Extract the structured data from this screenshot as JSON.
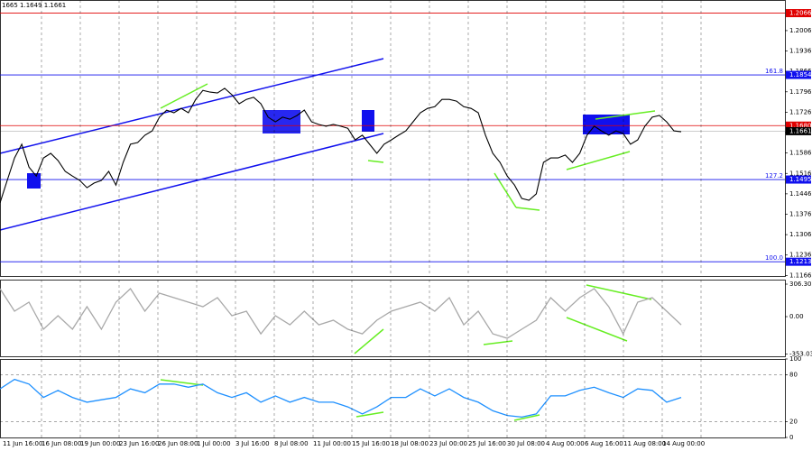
{
  "chart_data": [
    {
      "type": "line",
      "title": "1665 1.1649 1.1661",
      "color": "#000000",
      "ylim": [
        1.1164,
        1.2111
      ],
      "yticks": [
        1.2006,
        1.1936,
        1.1866,
        1.1796,
        1.1726,
        1.1656,
        1.1586,
        1.1516,
        1.1446,
        1.1376,
        1.1306,
        1.1236,
        1.1166
      ],
      "values": [
        1.1415,
        1.1492,
        1.1569,
        1.1616,
        1.1538,
        1.1507,
        1.1569,
        1.1585,
        1.156,
        1.1523,
        1.1507,
        1.1492,
        1.1467,
        1.1483,
        1.1492,
        1.1523,
        1.1476,
        1.1554,
        1.1616,
        1.1622,
        1.1647,
        1.1662,
        1.1709,
        1.1733,
        1.1724,
        1.1739,
        1.1724,
        1.177,
        1.1801,
        1.1795,
        1.1792,
        1.1808,
        1.1786,
        1.1755,
        1.177,
        1.1777,
        1.1755,
        1.1709,
        1.1693,
        1.1709,
        1.1702,
        1.1715,
        1.1733,
        1.1693,
        1.1684,
        1.1678,
        1.1684,
        1.1678,
        1.1671,
        1.1631,
        1.1647,
        1.1616,
        1.1585,
        1.1616,
        1.1631,
        1.1647,
        1.1662,
        1.1693,
        1.1724,
        1.1739,
        1.1745,
        1.177,
        1.177,
        1.1764,
        1.1745,
        1.1739,
        1.1724,
        1.1647,
        1.1585,
        1.1554,
        1.1507,
        1.1476,
        1.143,
        1.1424,
        1.1446,
        1.1554,
        1.1569,
        1.1569,
        1.1579,
        1.1554,
        1.1585,
        1.1647,
        1.1678,
        1.1662,
        1.1647,
        1.1662,
        1.1653,
        1.1616,
        1.1631,
        1.1678,
        1.1709,
        1.1715,
        1.1693,
        1.1662,
        1.1659
      ],
      "levels": [
        {
          "value": 1.2066,
          "label": "1.2066",
          "color": "#e00000"
        },
        {
          "value": 1.1854,
          "label": "1.1854",
          "name": "161.8",
          "color": "#1010ee"
        },
        {
          "value": 1.168,
          "label": "1.1680",
          "color": "#e00000"
        },
        {
          "value": 1.1661,
          "label": "1.1661",
          "color": "#000000"
        },
        {
          "value": 1.1495,
          "label": "1.1495",
          "name": "127.2",
          "color": "#1010ee"
        },
        {
          "value": 1.1213,
          "label": "1.1213",
          "name": "100.0",
          "color": "#1010ee"
        }
      ]
    },
    {
      "type": "line",
      "color": "#a8a8a8",
      "ylim": [
        -374,
        349
      ],
      "yticks": [
        306.3051,
        {
          "value": 0,
          "label": "0.00"
        },
        -353.035
      ],
      "values": [
        264,
        51,
        136,
        -119,
        9,
        -119,
        94,
        -119,
        136,
        264,
        51,
        221,
        179,
        136,
        94,
        179,
        9,
        51,
        -162,
        9,
        -77,
        51,
        -77,
        -34,
        -119,
        -162,
        -34,
        51,
        94,
        136,
        51,
        179,
        -77,
        51,
        -162,
        -204,
        -119,
        -34,
        179,
        51,
        179,
        264,
        94,
        -162,
        136,
        179,
        51,
        -77
      ]
    },
    {
      "type": "line",
      "color": "#1e90ff",
      "ylim": [
        0,
        100
      ],
      "yticks": [
        100,
        80,
        20,
        0
      ],
      "values": [
        62,
        74,
        68,
        51,
        60,
        51,
        45,
        48,
        51,
        62,
        57,
        68,
        68,
        64,
        68,
        57,
        51,
        57,
        45,
        53,
        45,
        51,
        45,
        45,
        39,
        30,
        39,
        51,
        51,
        62,
        53,
        62,
        51,
        45,
        34,
        28,
        26,
        30,
        53,
        53,
        60,
        64,
        57,
        51,
        62,
        60,
        45,
        51
      ],
      "xtick_labels": [
        "11 Jun 16:00",
        "16 Jun 08:00",
        "19 Jun 00:00",
        "23 Jun 16:00",
        "26 Jun 08:00",
        "1 Jul 00:00",
        "3 Jul 16:00",
        "8 Jul 08:00",
        "11 Jul 00:00",
        "15 Jul 16:00",
        "18 Jul 08:00",
        "23 Jul 00:00",
        "25 Jul 16:00",
        "30 Jul 08:00",
        "4 Aug 00:00",
        "6 Aug 16:00",
        "11 Aug 08:00",
        "14 Aug 00:00"
      ]
    }
  ]
}
